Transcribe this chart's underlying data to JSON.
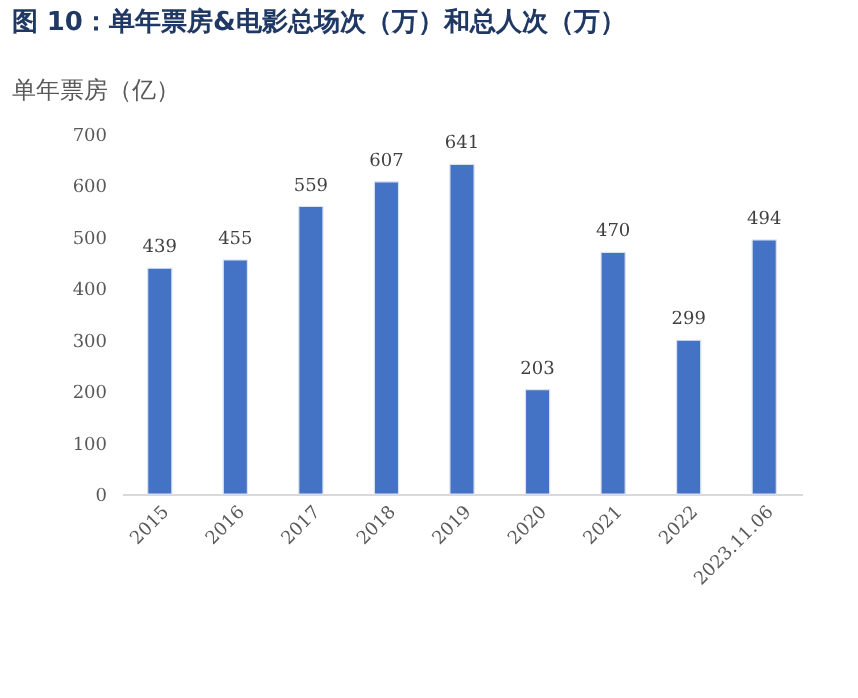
{
  "chart_data": {
    "type": "bar",
    "title": "图 10：单年票房&电影总场次（万）和总人次（万）",
    "subtitle": "单年票房（亿）",
    "categories": [
      "2015",
      "2016",
      "2017",
      "2018",
      "2019",
      "2020",
      "2021",
      "2022",
      "2023.11.06"
    ],
    "values": [
      439,
      455,
      559,
      607,
      641,
      203,
      470,
      299,
      494
    ],
    "color": "#4472c4",
    "ylim": [
      0,
      700
    ],
    "yticks": [
      0,
      100,
      200,
      300,
      400,
      500,
      600,
      700
    ],
    "grid": false,
    "data_labels": true
  }
}
